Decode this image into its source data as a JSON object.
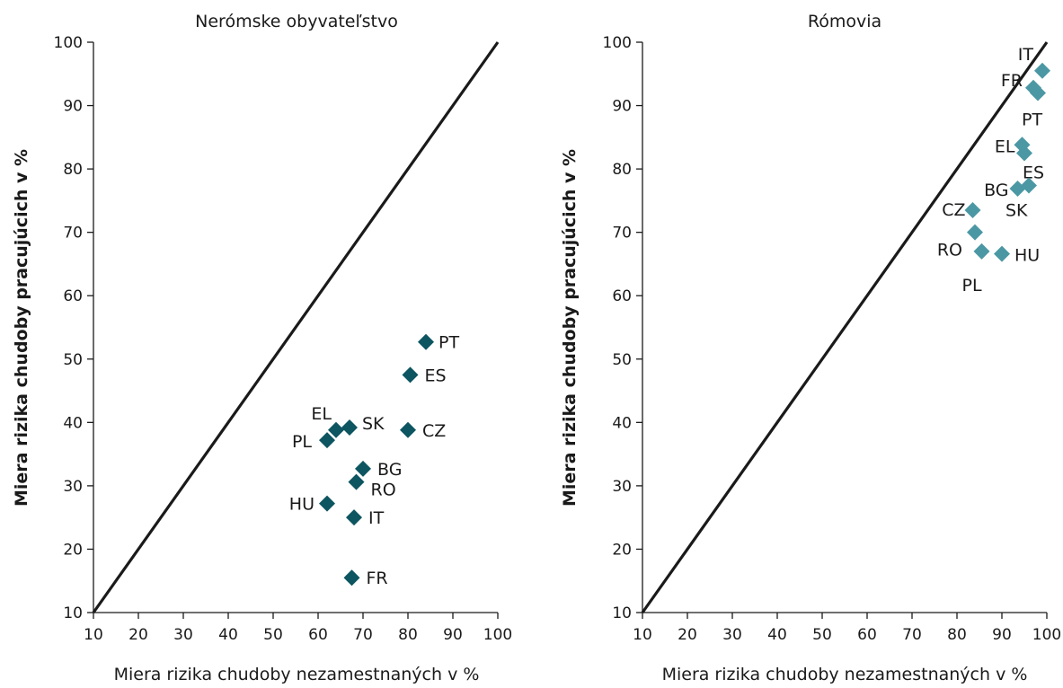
{
  "chart_data": [
    {
      "type": "scatter",
      "title": "Nerómske obyvateľstvo",
      "xlabel": "Miera rizika chudoby nezamestnaných v %",
      "ylabel": "Miera rizika chudoby pracujúcich v %",
      "xlim": [
        10,
        100
      ],
      "ylim": [
        10,
        100
      ],
      "xticks": [
        "10",
        "20",
        "30",
        "40",
        "50",
        "60",
        "70",
        "80",
        "90",
        "100"
      ],
      "yticks": [
        "10",
        "20",
        "30",
        "40",
        "50",
        "60",
        "70",
        "80",
        "90",
        "100"
      ],
      "diagonal": [
        [
          10,
          10
        ],
        [
          100,
          100
        ]
      ],
      "marker_color": "#0d5560",
      "points": [
        {
          "label": "PT",
          "x": 84,
          "y": 52.7
        },
        {
          "label": "ES",
          "x": 80.5,
          "y": 47.5
        },
        {
          "label": "CZ",
          "x": 80,
          "y": 38.8
        },
        {
          "label": "SK",
          "x": 67,
          "y": 39.2
        },
        {
          "label": "EL",
          "x": 64,
          "y": 38.8
        },
        {
          "label": "PL",
          "x": 62,
          "y": 37.2
        },
        {
          "label": "BG",
          "x": 70,
          "y": 32.7
        },
        {
          "label": "RO",
          "x": 68.5,
          "y": 30.6
        },
        {
          "label": "HU",
          "x": 62,
          "y": 27.2
        },
        {
          "label": "IT",
          "x": 68,
          "y": 25
        },
        {
          "label": "FR",
          "x": 67.5,
          "y": 15.5
        }
      ]
    },
    {
      "type": "scatter",
      "title": "Rómovia",
      "xlabel": "Miera rizika chudoby nezamestnaných v %",
      "ylabel": "Miera rizika chudoby pracujúcich v %",
      "xlim": [
        10,
        100
      ],
      "ylim": [
        10,
        100
      ],
      "xticks": [
        "10",
        "20",
        "30",
        "40",
        "50",
        "60",
        "70",
        "80",
        "90",
        "100"
      ],
      "yticks": [
        "10",
        "20",
        "30",
        "40",
        "50",
        "60",
        "70",
        "80",
        "90",
        "100"
      ],
      "diagonal": [
        [
          10,
          10
        ],
        [
          100,
          100
        ]
      ],
      "marker_color": "#4b98a4",
      "points": [
        {
          "label": "IT",
          "x": 99,
          "y": 95.5
        },
        {
          "label": "FR",
          "x": 97,
          "y": 92.8
        },
        {
          "label": "PT",
          "x": 98,
          "y": 92
        },
        {
          "label": "EL",
          "x": 94.5,
          "y": 83.8
        },
        {
          "label": "ES",
          "x": 95,
          "y": 82.5
        },
        {
          "label": "BG",
          "x": 93.5,
          "y": 76.9
        },
        {
          "label": "SK",
          "x": 96,
          "y": 77.4
        },
        {
          "label": "CZ",
          "x": 83.5,
          "y": 73.5
        },
        {
          "label": "RO",
          "x": 84,
          "y": 70
        },
        {
          "label": "PL",
          "x": 85.5,
          "y": 67
        },
        {
          "label": "HU",
          "x": 90,
          "y": 66.6
        }
      ]
    }
  ]
}
